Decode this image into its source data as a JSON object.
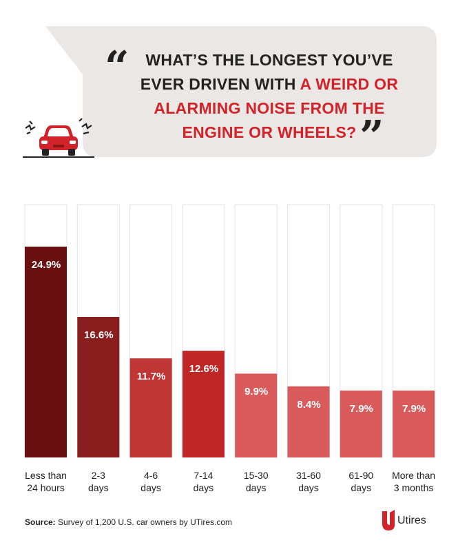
{
  "header": {
    "title_part1": "WHAT’S THE LONGEST YOU’VE EVER DRIVEN WITH ",
    "title_highlight": "A WEIRD OR ALARMING NOISE FROM THE ENGINE OR WHEELS?",
    "quote_open": "“",
    "quote_close": "”"
  },
  "colors": {
    "accent": "#d2232a",
    "bubble": "#ebe7e4",
    "bar_track_border": "#e3e3e3"
  },
  "chart_data": {
    "type": "bar",
    "title": "WHAT’S THE LONGEST YOU’VE EVER DRIVEN WITH A WEIRD OR ALARMING NOISE FROM THE ENGINE OR WHEELS?",
    "categories": [
      "Less than 24 hours",
      "2-3 days",
      "4-6 days",
      "7-14 days",
      "15-30 days",
      "31-60 days",
      "61-90 days",
      "More than 3 months"
    ],
    "category_lines": [
      [
        "Less than",
        "24 hours"
      ],
      [
        "2-3",
        "days"
      ],
      [
        "4-6",
        "days"
      ],
      [
        "7-14",
        "days"
      ],
      [
        "15-30",
        "days"
      ],
      [
        "31-60",
        "days"
      ],
      [
        "61-90",
        "days"
      ],
      [
        "More than",
        "3 months"
      ]
    ],
    "values": [
      24.9,
      16.6,
      11.7,
      12.6,
      9.9,
      8.4,
      7.9,
      7.9
    ],
    "value_labels": [
      "24.9%",
      "16.6%",
      "11.7%",
      "12.6%",
      "9.9%",
      "8.4%",
      "7.9%",
      "7.9%"
    ],
    "bar_colors": [
      "#6b1010",
      "#8a1d1d",
      "#c23535",
      "#bf2626",
      "#d95a5a",
      "#d95a5a",
      "#d95a5a",
      "#d95a5a"
    ],
    "ylim": [
      0,
      30
    ],
    "xlabel": "",
    "ylabel": "",
    "grid": false
  },
  "footer": {
    "source_label": "Source:",
    "source_text": " Survey of 1,200 U.S. car owners by UTires.com",
    "logo_text": "Utires"
  }
}
